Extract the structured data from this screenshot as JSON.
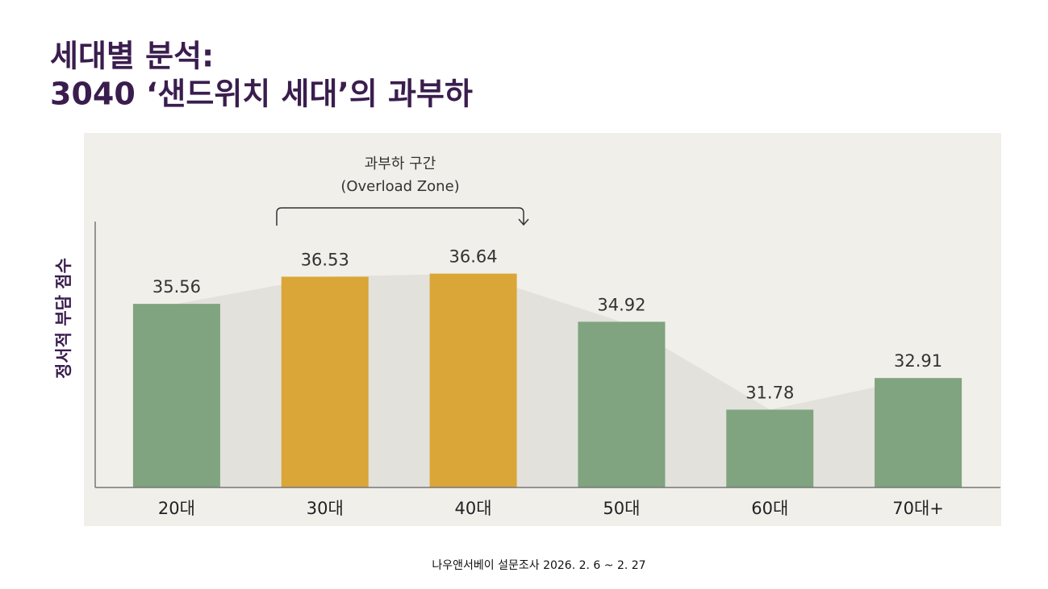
{
  "chart_data": {
    "type": "bar",
    "title_lines": [
      "세대별 분석:",
      "3040 ‘샌드위치 세대’의 과부하"
    ],
    "y_label": "정서적 부담 점수",
    "annotation": [
      "과부하 구간",
      "(Overload Zone)"
    ],
    "source": "나우앤서베이 설문조사 2026. 2. 6 ~ 2. 27",
    "categories": [
      "20대",
      "30대",
      "40대",
      "50대",
      "60대",
      "70대+"
    ],
    "values": [
      35.56,
      36.53,
      36.64,
      34.92,
      31.78,
      32.91
    ],
    "colors": [
      "#7fa47f",
      "#d9a637",
      "#d9a637",
      "#7fa47f",
      "#7fa47f",
      "#7fa47f"
    ],
    "ylim": [
      29,
      38.5
    ]
  }
}
